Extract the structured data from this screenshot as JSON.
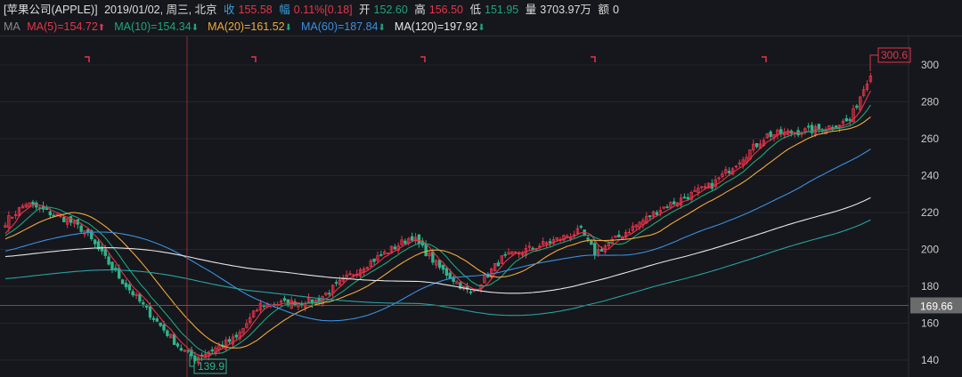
{
  "header": {
    "symbol": "[苹果公司(APPLE)]",
    "date": "2019/01/02, 周三, 北京",
    "close_label": "收",
    "close": "155.58",
    "chg_label": "幅",
    "chg_pct": "0.11%",
    "chg_abs": "[0.18]",
    "open_label": "开",
    "open": "152.60",
    "high_label": "高",
    "high": "156.50",
    "low_label": "低",
    "low": "151.95",
    "vol_label": "量",
    "vol": "3703.97万",
    "amt_label": "额",
    "amt": "0"
  },
  "ma_bar": {
    "label": "MA",
    "items": [
      {
        "text": "MA(5)=154.72",
        "dir": "up",
        "color": "#e8334a"
      },
      {
        "text": "MA(10)=154.34",
        "dir": "down",
        "color": "#1fa57a"
      },
      {
        "text": "MA(20)=161.52",
        "dir": "down",
        "color": "#f0a83a"
      },
      {
        "text": "MA(60)=187.84",
        "dir": "down",
        "color": "#3b8fe0"
      },
      {
        "text": "MA(120)=197.92",
        "dir": "down",
        "color": "#e6e6e6"
      }
    ]
  },
  "chart_data": {
    "type": "candlestick",
    "ylim": [
      132,
      312
    ],
    "yticks": [
      "140",
      "160",
      "180",
      "200",
      "220",
      "240",
      "260",
      "280",
      "300"
    ],
    "ma_periods": [
      5,
      10,
      20,
      60,
      120
    ],
    "extra_line_color": "#2aa0a0",
    "close_path": [
      [
        0,
        215
      ],
      [
        6,
        225
      ],
      [
        18,
        216
      ],
      [
        23,
        210
      ],
      [
        33,
        185
      ],
      [
        42,
        165
      ],
      [
        51,
        146
      ],
      [
        55,
        141
      ],
      [
        67,
        152
      ],
      [
        74,
        170
      ],
      [
        90,
        172
      ],
      [
        103,
        190
      ],
      [
        118,
        207
      ],
      [
        126,
        190
      ],
      [
        135,
        176
      ],
      [
        144,
        195
      ],
      [
        167,
        210
      ],
      [
        171,
        198
      ],
      [
        190,
        222
      ],
      [
        205,
        235
      ],
      [
        221,
        262
      ],
      [
        236,
        265
      ],
      [
        245,
        270
      ],
      [
        251,
        296
      ]
    ],
    "current_price": "169.66",
    "max_label": "300.6",
    "min_label": "139.9",
    "up_color": "#e8334a",
    "down_color": "#2fb58a"
  }
}
